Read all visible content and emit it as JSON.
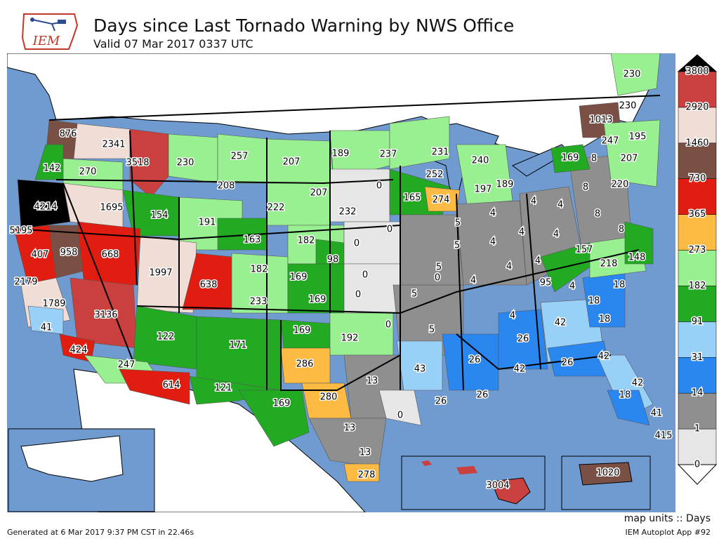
{
  "header": {
    "title": "Days since Last Tornado Warning by NWS Office",
    "subtitle": "Valid 07 Mar 2017 0337 UTC",
    "logo_text": "IEM"
  },
  "footer": {
    "units": "map units :: Days",
    "generated": "Generated at 6 Mar 2017 9:37 PM CST in 22.46s",
    "app": "IEM Autoplot App #92"
  },
  "colors": {
    "ocean": "#6f9bd1",
    "land": "#ffffff",
    "border": "#000000"
  },
  "legend": {
    "levels": [
      "0",
      "1",
      "14",
      "31",
      "91",
      "182",
      "273",
      "365",
      "730",
      "1460",
      "2920",
      "3800"
    ],
    "bins": [
      {
        "color": "#e6e6e6"
      },
      {
        "color": "#8f8f8f"
      },
      {
        "color": "#2b87f0"
      },
      {
        "color": "#98d0f8"
      },
      {
        "color": "#22aa22"
      },
      {
        "color": "#98f090"
      },
      {
        "color": "#fdbb43"
      },
      {
        "color": "#e01d10"
      },
      {
        "color": "#7a4f44"
      },
      {
        "color": "#f0ddd6"
      },
      {
        "color": "#c9403e"
      }
    ],
    "over_color": "#000000"
  },
  "chart_data": {
    "type": "map",
    "units": "Days",
    "offices": [
      {
        "label": "876",
        "value": 876
      },
      {
        "label": "2341",
        "value": 2341
      },
      {
        "label": "142",
        "value": 142
      },
      {
        "label": "270",
        "value": 270
      },
      {
        "label": "3518",
        "value": 3518
      },
      {
        "label": "230",
        "value": 230
      },
      {
        "label": "257",
        "value": 257
      },
      {
        "label": "208",
        "value": 208
      },
      {
        "label": "207",
        "value": 207
      },
      {
        "label": "189",
        "value": 189
      },
      {
        "label": "237",
        "value": 237
      },
      {
        "label": "231",
        "value": 231
      },
      {
        "label": "4214",
        "value": 4214
      },
      {
        "label": "1695",
        "value": 1695
      },
      {
        "label": "154",
        "value": 154
      },
      {
        "label": "191",
        "value": 191
      },
      {
        "label": "163",
        "value": 163
      },
      {
        "label": "222",
        "value": 222
      },
      {
        "label": "207",
        "value": 207
      },
      {
        "label": "232",
        "value": 232
      },
      {
        "label": "0",
        "value": 0
      },
      {
        "label": "165",
        "value": 165
      },
      {
        "label": "252",
        "value": 252
      },
      {
        "label": "274",
        "value": 274
      },
      {
        "label": "240",
        "value": 240
      },
      {
        "label": "197",
        "value": 197
      },
      {
        "label": "189",
        "value": 189
      },
      {
        "label": "5195",
        "value": 5195
      },
      {
        "label": "407",
        "value": 407
      },
      {
        "label": "958",
        "value": 958
      },
      {
        "label": "668",
        "value": 668
      },
      {
        "label": "1997",
        "value": 1997
      },
      {
        "label": "638",
        "value": 638
      },
      {
        "label": "182",
        "value": 182
      },
      {
        "label": "182",
        "value": 182
      },
      {
        "label": "0",
        "value": 0
      },
      {
        "label": "0",
        "value": 0
      },
      {
        "label": "98",
        "value": 98
      },
      {
        "label": "2179",
        "value": 2179
      },
      {
        "label": "1789",
        "value": 1789
      },
      {
        "label": "3136",
        "value": 3136
      },
      {
        "label": "169",
        "value": 169
      },
      {
        "label": "233",
        "value": 233
      },
      {
        "label": "169",
        "value": 169
      },
      {
        "label": "0",
        "value": 0
      },
      {
        "label": "0",
        "value": 0
      },
      {
        "label": "0",
        "value": 0
      },
      {
        "label": "41",
        "value": 41
      },
      {
        "label": "424",
        "value": 424
      },
      {
        "label": "122",
        "value": 122
      },
      {
        "label": "171",
        "value": 171
      },
      {
        "label": "169",
        "value": 169
      },
      {
        "label": "192",
        "value": 192
      },
      {
        "label": "0",
        "value": 0
      },
      {
        "label": "5",
        "value": 5
      },
      {
        "label": "5",
        "value": 5
      },
      {
        "label": "5",
        "value": 5
      },
      {
        "label": "247",
        "value": 247
      },
      {
        "label": "614",
        "value": 614
      },
      {
        "label": "121",
        "value": 121
      },
      {
        "label": "286",
        "value": 286
      },
      {
        "label": "169",
        "value": 169
      },
      {
        "label": "280",
        "value": 280
      },
      {
        "label": "13",
        "value": 13
      },
      {
        "label": "13",
        "value": 13
      },
      {
        "label": "13",
        "value": 13
      },
      {
        "label": "278",
        "value": 278
      },
      {
        "label": "0",
        "value": 0
      },
      {
        "label": "43",
        "value": 43
      },
      {
        "label": "26",
        "value": 26
      },
      {
        "label": "26",
        "value": 26
      },
      {
        "label": "26",
        "value": 26
      },
      {
        "label": "26",
        "value": 26
      },
      {
        "label": "42",
        "value": 42
      },
      {
        "label": "42",
        "value": 42
      },
      {
        "label": "26",
        "value": 26
      },
      {
        "label": "42",
        "value": 42
      },
      {
        "label": "42",
        "value": 42
      },
      {
        "label": "18",
        "value": 18
      },
      {
        "label": "41",
        "value": 41
      },
      {
        "label": "415",
        "value": 415
      },
      {
        "label": "4",
        "value": 4
      },
      {
        "label": "4",
        "value": 4
      },
      {
        "label": "4",
        "value": 4
      },
      {
        "label": "4",
        "value": 4
      },
      {
        "label": "4",
        "value": 4
      },
      {
        "label": "4",
        "value": 4
      },
      {
        "label": "4",
        "value": 4
      },
      {
        "label": "4",
        "value": 4
      },
      {
        "label": "4",
        "value": 4
      },
      {
        "label": "4",
        "value": 4
      },
      {
        "label": "5",
        "value": 5
      },
      {
        "label": "5",
        "value": 5
      },
      {
        "label": "5",
        "value": 5
      },
      {
        "label": "4",
        "value": 4
      },
      {
        "label": "157",
        "value": 157
      },
      {
        "label": "95",
        "value": 95
      },
      {
        "label": "218",
        "value": 218
      },
      {
        "label": "148",
        "value": 148
      },
      {
        "label": "18",
        "value": 18
      },
      {
        "label": "18",
        "value": 18
      },
      {
        "label": "18",
        "value": 18
      },
      {
        "label": "8",
        "value": 8
      },
      {
        "label": "8",
        "value": 8
      },
      {
        "label": "8",
        "value": 8
      },
      {
        "label": "8",
        "value": 8
      },
      {
        "label": "169",
        "value": 169
      },
      {
        "label": "1013",
        "value": 1013
      },
      {
        "label": "247",
        "value": 247
      },
      {
        "label": "195",
        "value": 195
      },
      {
        "label": "207",
        "value": 207
      },
      {
        "label": "220",
        "value": 220
      },
      {
        "label": "230",
        "value": 230
      },
      {
        "label": "230",
        "value": 230
      },
      {
        "label": "3004",
        "value": 3004
      },
      {
        "label": "1020",
        "value": 1020
      }
    ]
  }
}
